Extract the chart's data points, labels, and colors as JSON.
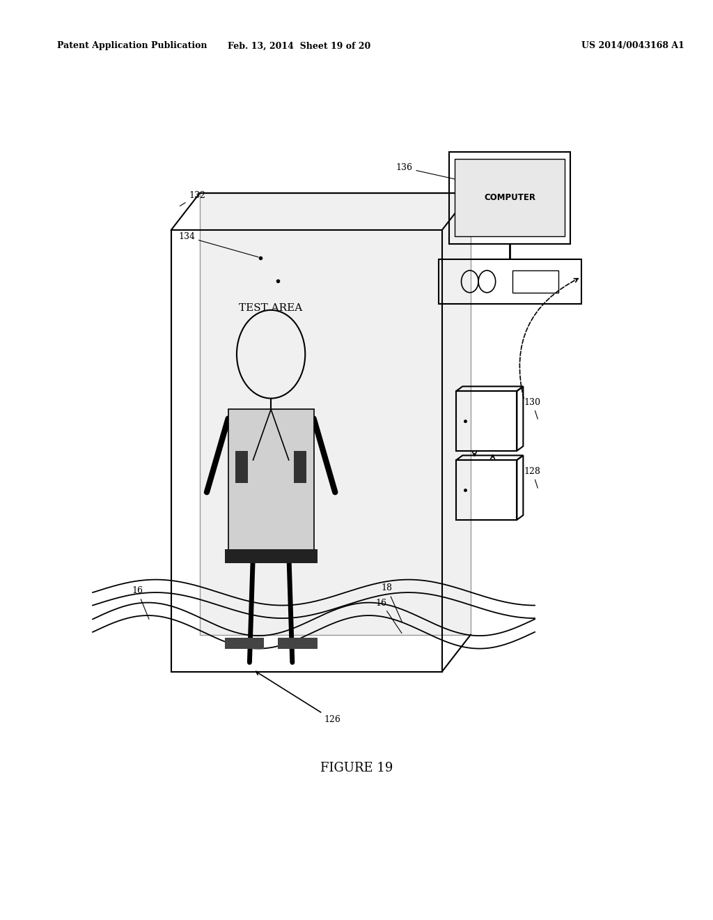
{
  "bg_color": "#ffffff",
  "header_left": "Patent Application Publication",
  "header_mid": "Feb. 13, 2014  Sheet 19 of 20",
  "header_right": "US 2014/0043168 A1",
  "figure_label": "FIGURE 19",
  "test_area_text": "TEST AREA",
  "computer_text": "COMPUTER"
}
